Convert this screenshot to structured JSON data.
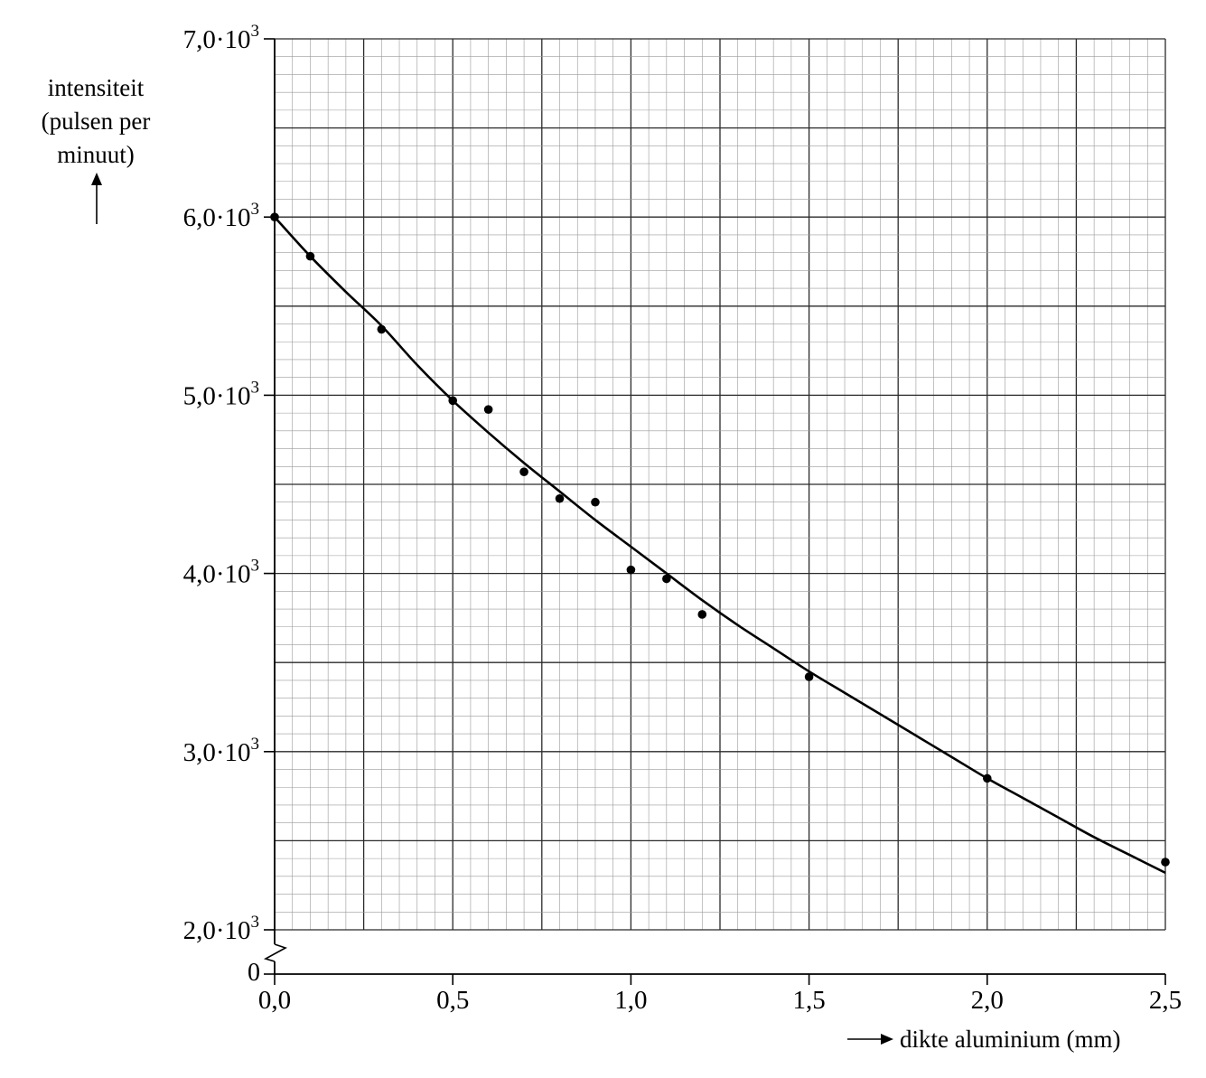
{
  "chart_data": {
    "type": "scatter",
    "ylabel_lines": [
      "intensiteit",
      "(pulsen per",
      "minuut)"
    ],
    "xlabel": "dikte aluminium (mm)",
    "xlim": [
      0,
      2.5
    ],
    "ylim": [
      2000,
      7000
    ],
    "x_ticks": [
      {
        "value": 0.0,
        "label": "0,0"
      },
      {
        "value": 0.5,
        "label": "0,5"
      },
      {
        "value": 1.0,
        "label": "1,0"
      },
      {
        "value": 1.5,
        "label": "1,5"
      },
      {
        "value": 2.0,
        "label": "2,0"
      },
      {
        "value": 2.5,
        "label": "2,5"
      }
    ],
    "y_ticks": [
      {
        "value": 2000,
        "mantissa": "2,0·10",
        "exp": "3"
      },
      {
        "value": 3000,
        "mantissa": "3,0·10",
        "exp": "3"
      },
      {
        "value": 4000,
        "mantissa": "4,0·10",
        "exp": "3"
      },
      {
        "value": 5000,
        "mantissa": "5,0·10",
        "exp": "3"
      },
      {
        "value": 6000,
        "mantissa": "6,0·10",
        "exp": "3"
      },
      {
        "value": 7000,
        "mantissa": "7,0·10",
        "exp": "3"
      }
    ],
    "y_origin_label": "0",
    "axis_break": true,
    "grid": true,
    "points": [
      {
        "x": 0.0,
        "y": 6000
      },
      {
        "x": 0.1,
        "y": 5780
      },
      {
        "x": 0.3,
        "y": 5370
      },
      {
        "x": 0.5,
        "y": 4970
      },
      {
        "x": 0.6,
        "y": 4920
      },
      {
        "x": 0.7,
        "y": 4570
      },
      {
        "x": 0.8,
        "y": 4420
      },
      {
        "x": 0.9,
        "y": 4400
      },
      {
        "x": 1.0,
        "y": 4020
      },
      {
        "x": 1.1,
        "y": 3970
      },
      {
        "x": 1.2,
        "y": 3770
      },
      {
        "x": 1.5,
        "y": 3420
      },
      {
        "x": 2.0,
        "y": 2850
      },
      {
        "x": 2.5,
        "y": 2380
      }
    ],
    "curve": {
      "type": "fit",
      "x": [
        0.0,
        0.1,
        0.2,
        0.3,
        0.4,
        0.5,
        0.6,
        0.7,
        0.8,
        0.9,
        1.0,
        1.1,
        1.2,
        1.3,
        1.4,
        1.5,
        1.6,
        1.7,
        1.8,
        1.9,
        2.0,
        2.1,
        2.2,
        2.3,
        2.4,
        2.5
      ],
      "y": [
        6000,
        5780,
        5580,
        5390,
        5170,
        4970,
        4790,
        4620,
        4460,
        4300,
        4150,
        4000,
        3850,
        3710,
        3580,
        3450,
        3330,
        3210,
        3090,
        2970,
        2850,
        2740,
        2630,
        2520,
        2420,
        2320
      ]
    }
  }
}
